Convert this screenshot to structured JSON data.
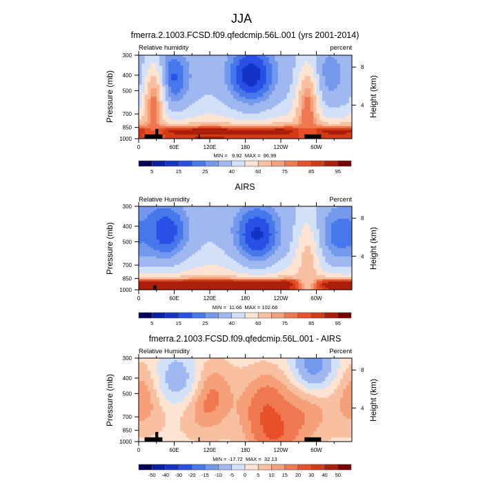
{
  "page_title": "JJA",
  "chart_data": [
    {
      "type": "heatmap",
      "title": "fmerra.2.1003.FCSD.f09.qfedcmip.56L.001 (yrs 2001-2014)",
      "left_string": "Relative humidity",
      "right_string": "percent",
      "ylabel": "Pressure (mb)",
      "ylabel_right": "Height (km)",
      "x_ticks": [
        "0",
        "60E",
        "120E",
        "180",
        "120W",
        "60W"
      ],
      "y_ticks": [
        "300",
        "400",
        "500",
        "700",
        "850",
        "1000"
      ],
      "y_ticks_right": [
        "8",
        "4"
      ],
      "xlim": [
        0,
        360
      ],
      "ylim": [
        1000,
        300
      ],
      "stats": "MIN =   9.92  MAX =  96.99",
      "colorbar": {
        "levels": [
          5,
          10,
          15,
          20,
          25,
          30,
          40,
          50,
          60,
          70,
          75,
          80,
          85,
          90,
          95
        ],
        "labels": [
          "5",
          "15",
          "25",
          "40",
          "60",
          "75",
          "85",
          "95"
        ],
        "colors": [
          "#00005a",
          "#0a1ea0",
          "#1432c8",
          "#2850e6",
          "#4678eb",
          "#7398ec",
          "#a0b8f0",
          "#d2e0f8",
          "#fde4d2",
          "#f8c0a0",
          "#f5a078",
          "#f07850",
          "#e8502a",
          "#d23c14",
          "#aa1e0a",
          "#780000"
        ]
      },
      "features": [
        {
          "name": "dry-upper-subtropics-central",
          "lon": 190,
          "p": 400,
          "value": 12
        },
        {
          "name": "dry-upper-east-africa",
          "lon": 45,
          "p": 420,
          "value": 15
        },
        {
          "name": "dry-upper-atlantic",
          "lon": 310,
          "p": 400,
          "value": 25
        },
        {
          "name": "moist-boundary-layer",
          "lon": 180,
          "p": 900,
          "value": 92
        },
        {
          "name": "moist-column-americas",
          "lon": 285,
          "p": 700,
          "value": 80
        },
        {
          "name": "moist-column-africa",
          "lon": 25,
          "p": 650,
          "value": 78
        }
      ]
    },
    {
      "type": "heatmap",
      "title": "AIRS",
      "left_string": "Relative Humidity",
      "right_string": "Percent",
      "ylabel": "Pressure (mb)",
      "ylabel_right": "Height (km)",
      "x_ticks": [
        "0",
        "60E",
        "120E",
        "180",
        "120W",
        "60W"
      ],
      "y_ticks": [
        "300",
        "400",
        "500",
        "700",
        "850",
        "1000"
      ],
      "y_ticks_right": [
        "8",
        "4"
      ],
      "xlim": [
        0,
        360
      ],
      "ylim": [
        1000,
        300
      ],
      "stats": "MIN =  11.66  MAX = 102.68",
      "colorbar": {
        "levels": [
          5,
          10,
          15,
          20,
          25,
          30,
          40,
          50,
          60,
          70,
          75,
          80,
          85,
          90,
          95
        ],
        "labels": [
          "5",
          "15",
          "25",
          "40",
          "60",
          "75",
          "85",
          "95"
        ],
        "colors": [
          "#00005a",
          "#0a1ea0",
          "#1432c8",
          "#2850e6",
          "#4678eb",
          "#7398ec",
          "#a0b8f0",
          "#d2e0f8",
          "#fde4d2",
          "#f8c0a0",
          "#f5a078",
          "#f07850",
          "#e8502a",
          "#d23c14",
          "#aa1e0a",
          "#780000"
        ]
      },
      "features": [
        {
          "name": "dry-upper-subtropics-central",
          "lon": 200,
          "p": 450,
          "value": 14
        },
        {
          "name": "dry-upper-east-africa",
          "lon": 45,
          "p": 430,
          "value": 16
        },
        {
          "name": "dry-upper-atlantic",
          "lon": 340,
          "p": 450,
          "value": 22
        },
        {
          "name": "moist-boundary-layer",
          "lon": 150,
          "p": 930,
          "value": 94
        },
        {
          "name": "moist-column-americas",
          "lon": 285,
          "p": 750,
          "value": 65
        }
      ]
    },
    {
      "type": "heatmap",
      "title": "fmerra.2.1003.FCSD.f09.qfedcmip.56L.001 - AIRS",
      "left_string": "Relative Humidity",
      "right_string": "Percent",
      "ylabel": "Pressure (mb)",
      "ylabel_right": "Height (km)",
      "x_ticks": [
        "0",
        "60E",
        "120E",
        "180",
        "120W",
        "60W"
      ],
      "y_ticks": [
        "300",
        "400",
        "500",
        "700",
        "850",
        "1000"
      ],
      "y_ticks_right": [
        "8",
        "4"
      ],
      "xlim": [
        0,
        360
      ],
      "ylim": [
        1000,
        300
      ],
      "stats": "MIN = -17.72  MAX =  32.13",
      "colorbar": {
        "levels": [
          -50,
          -40,
          -30,
          -20,
          -15,
          -10,
          -5,
          0,
          5,
          10,
          15,
          20,
          30,
          40,
          50
        ],
        "labels": [
          "-50",
          "-40",
          "-30",
          "-20",
          "-15",
          "-10",
          "-5",
          "0",
          "5",
          "10",
          "15",
          "20",
          "30",
          "40",
          "50"
        ],
        "colors": [
          "#00005a",
          "#0a1ea0",
          "#1432c8",
          "#2850e6",
          "#4678eb",
          "#7398ec",
          "#a0b8f0",
          "#d2e0f8",
          "#fde4d2",
          "#f8c0a0",
          "#f5a078",
          "#f07850",
          "#e8502a",
          "#d23c14",
          "#aa1e0a",
          "#780000"
        ]
      },
      "features": [
        {
          "name": "pos-anom-africa",
          "lon": 10,
          "p": 500,
          "value": 18
        },
        {
          "name": "pos-anom-indian",
          "lon": 110,
          "p": 520,
          "value": 22
        },
        {
          "name": "pos-anom-pacific",
          "lon": 220,
          "p": 600,
          "value": 18
        },
        {
          "name": "pos-anom-pacific-low",
          "lon": 230,
          "p": 800,
          "value": 22
        },
        {
          "name": "pos-anom-americas",
          "lon": 280,
          "p": 550,
          "value": 20
        },
        {
          "name": "neg-anom-upper-atlantic",
          "lon": 295,
          "p": 330,
          "value": -12
        },
        {
          "name": "neg-anom-upper-asia",
          "lon": 65,
          "p": 400,
          "value": -8
        }
      ]
    }
  ]
}
